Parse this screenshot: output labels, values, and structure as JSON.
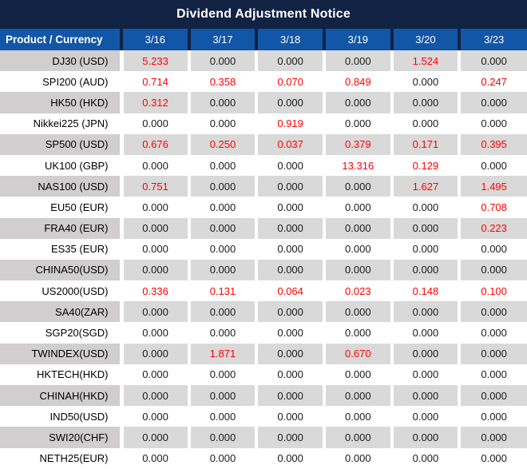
{
  "title": "Dividend Adjustment Notice",
  "colors": {
    "title_bg": "#112243",
    "header_bg": "#1256a7",
    "stripe_value_bg": "#d9d9d9",
    "stripe_product_bg": "#d0cece",
    "zero_text": "#1a1a1a",
    "nonzero_text": "#ff0000",
    "header_text": "#ffffff"
  },
  "table": {
    "product_header": "Product / Currency",
    "date_headers": [
      "3/16",
      "3/17",
      "3/18",
      "3/19",
      "3/20",
      "3/23"
    ],
    "zero_value": "0.000",
    "rows": [
      {
        "product": "DJ30 (USD)",
        "values": [
          "5.233",
          "0.000",
          "0.000",
          "0.000",
          "1.524",
          "0.000"
        ]
      },
      {
        "product": "SPI200 (AUD)",
        "values": [
          "0.714",
          "0.358",
          "0.070",
          "0.849",
          "0.000",
          "0.247"
        ]
      },
      {
        "product": "HK50 (HKD)",
        "values": [
          "0.312",
          "0.000",
          "0.000",
          "0.000",
          "0.000",
          "0.000"
        ]
      },
      {
        "product": "Nikkei225 (JPN)",
        "values": [
          "0.000",
          "0.000",
          "0.919",
          "0.000",
          "0.000",
          "0.000"
        ]
      },
      {
        "product": "SP500 (USD)",
        "values": [
          "0.676",
          "0.250",
          "0.037",
          "0.379",
          "0.171",
          "0.395"
        ]
      },
      {
        "product": "UK100 (GBP)",
        "values": [
          "0.000",
          "0.000",
          "0.000",
          "13.316",
          "0.129",
          "0.000"
        ]
      },
      {
        "product": "NAS100 (USD)",
        "values": [
          "0.751",
          "0.000",
          "0.000",
          "0.000",
          "1.627",
          "1.495"
        ]
      },
      {
        "product": "EU50 (EUR)",
        "values": [
          "0.000",
          "0.000",
          "0.000",
          "0.000",
          "0.000",
          "0.708"
        ]
      },
      {
        "product": "FRA40 (EUR)",
        "values": [
          "0.000",
          "0.000",
          "0.000",
          "0.000",
          "0.000",
          "0.223"
        ]
      },
      {
        "product": "ES35 (EUR)",
        "values": [
          "0.000",
          "0.000",
          "0.000",
          "0.000",
          "0.000",
          "0.000"
        ]
      },
      {
        "product": "CHINA50(USD)",
        "values": [
          "0.000",
          "0.000",
          "0.000",
          "0.000",
          "0.000",
          "0.000"
        ]
      },
      {
        "product": "US2000(USD)",
        "values": [
          "0.336",
          "0.131",
          "0.064",
          "0.023",
          "0.148",
          "0.100"
        ]
      },
      {
        "product": "SA40(ZAR)",
        "values": [
          "0.000",
          "0.000",
          "0.000",
          "0.000",
          "0.000",
          "0.000"
        ]
      },
      {
        "product": "SGP20(SGD)",
        "values": [
          "0.000",
          "0.000",
          "0.000",
          "0.000",
          "0.000",
          "0.000"
        ]
      },
      {
        "product": "TWINDEX(USD)",
        "values": [
          "0.000",
          "1.871",
          "0.000",
          "0.670",
          "0.000",
          "0.000"
        ]
      },
      {
        "product": "HKTECH(HKD)",
        "values": [
          "0.000",
          "0.000",
          "0.000",
          "0.000",
          "0.000",
          "0.000"
        ]
      },
      {
        "product": "CHINAH(HKD)",
        "values": [
          "0.000",
          "0.000",
          "0.000",
          "0.000",
          "0.000",
          "0.000"
        ]
      },
      {
        "product": "IND50(USD)",
        "values": [
          "0.000",
          "0.000",
          "0.000",
          "0.000",
          "0.000",
          "0.000"
        ]
      },
      {
        "product": "SWI20(CHF)",
        "values": [
          "0.000",
          "0.000",
          "0.000",
          "0.000",
          "0.000",
          "0.000"
        ]
      },
      {
        "product": "NETH25(EUR)",
        "values": [
          "0.000",
          "0.000",
          "0.000",
          "0.000",
          "0.000",
          "0.000"
        ]
      }
    ]
  }
}
